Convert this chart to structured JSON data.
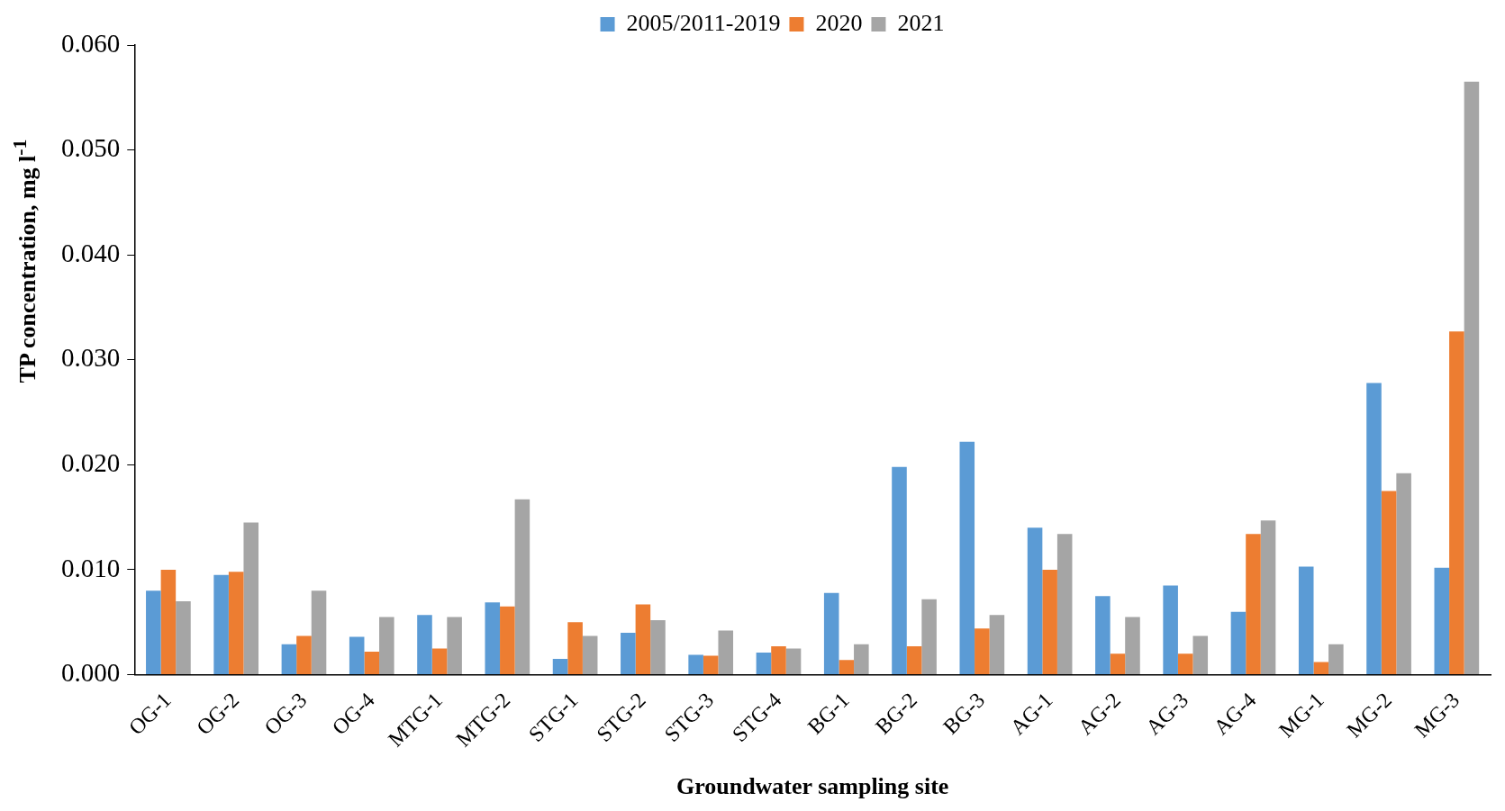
{
  "chart_data": {
    "type": "bar",
    "xlabel": "Groundwater sampling site",
    "ylabel": "TP concentration, mg l$^{-1}$",
    "categories": [
      "OG-1",
      "OG-2",
      "OG-3",
      "OG-4",
      "MTG-1",
      "MTG-2",
      "STG-1",
      "STG-2",
      "STG-3",
      "STG-4",
      "BG-1",
      "BG-2",
      "BG-3",
      "AG-1",
      "AG-2",
      "AG-3",
      "AG-4",
      "MG-1",
      "MG-2",
      "MG-3"
    ],
    "series": [
      {
        "name": "2005/2011-2019",
        "color": "#5b9bd5",
        "values": [
          0.008,
          0.0095,
          0.0029,
          0.0036,
          0.0057,
          0.0069,
          0.0015,
          0.004,
          0.0019,
          0.0021,
          0.0078,
          0.0198,
          0.0222,
          0.014,
          0.0075,
          0.0085,
          0.006,
          0.0103,
          0.0278,
          0.0102
        ]
      },
      {
        "name": "2020",
        "color": "#ed7d31",
        "values": [
          0.01,
          0.0098,
          0.0037,
          0.0022,
          0.0025,
          0.0065,
          0.005,
          0.0067,
          0.0018,
          0.0027,
          0.0014,
          0.0027,
          0.0044,
          0.01,
          0.002,
          0.002,
          0.0134,
          0.0012,
          0.0175,
          0.0327
        ]
      },
      {
        "name": "2021",
        "color": "#a5a5a5",
        "values": [
          0.007,
          0.0145,
          0.008,
          0.0055,
          0.0055,
          0.0167,
          0.0037,
          0.0052,
          0.0042,
          0.0025,
          0.0029,
          0.0072,
          0.0057,
          0.0134,
          0.0055,
          0.0037,
          0.0147,
          0.0029,
          0.0192,
          0.0565
        ]
      }
    ],
    "ylim": [
      0,
      0.06
    ],
    "yticks": [
      {
        "value": 0,
        "label": "0.000"
      },
      {
        "value": 0.01,
        "label": "0.010"
      },
      {
        "value": 0.02,
        "label": "0.020"
      },
      {
        "value": 0.03,
        "label": "0.030"
      },
      {
        "value": 0.04,
        "label": "0.040"
      },
      {
        "value": 0.05,
        "label": "0.050"
      },
      {
        "value": 0.06,
        "label": "0.060"
      }
    ],
    "grid": false,
    "legend": "top"
  }
}
